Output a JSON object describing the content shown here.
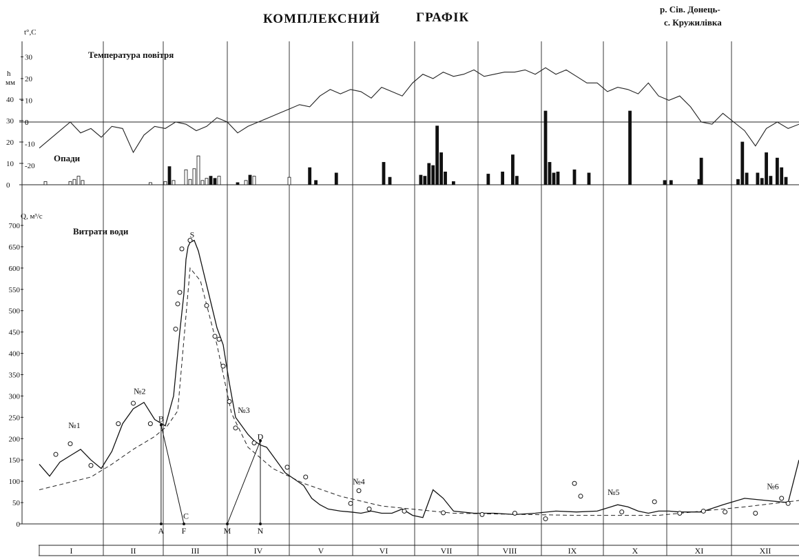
{
  "title_left": "КОМПЛЕКСНИЙ",
  "title_right": "ГРАФІК",
  "station_line1": "р. Сів. Донець-",
  "station_line2": "с. Кружилівка",
  "temp_axis_label": "t°,C",
  "precip_axis_label_h": "h",
  "precip_axis_label_mm": "мм",
  "q_axis_label": "Q, м³/с",
  "temp_label": "Температура повітря",
  "precip_label": "Опади",
  "q_label": "Витрати води",
  "chart_data": {
    "type": "line",
    "months": [
      "I",
      "II",
      "III",
      "IV",
      "V",
      "VI",
      "VII",
      "VIII",
      "IX",
      "X",
      "XI",
      "XII"
    ],
    "temperature": {
      "ticks": [
        "30",
        "20",
        "10",
        "0",
        "-10",
        "-20"
      ],
      "ylim": [
        -25,
        35
      ],
      "x_day": [
        0,
        5,
        10,
        15,
        20,
        25,
        30,
        35,
        40,
        45,
        50,
        55,
        60,
        65,
        70,
        75,
        80,
        85,
        90,
        95,
        100,
        105,
        110,
        115,
        120,
        125,
        130,
        135,
        140,
        145,
        150,
        155,
        160,
        165,
        170,
        175,
        180,
        185,
        190,
        195,
        200,
        205,
        210,
        215,
        220,
        225,
        230,
        235,
        240,
        245,
        250,
        255,
        260,
        265,
        270,
        275,
        280,
        285,
        290,
        295,
        300,
        305,
        310,
        315,
        320,
        325,
        330,
        335,
        340,
        345,
        350,
        355,
        360,
        365
      ],
      "values": [
        -12,
        -8,
        -4,
        0,
        -5,
        -3,
        -7,
        -2,
        -3,
        -14,
        -6,
        -2,
        -3,
        0,
        -1,
        -4,
        -2,
        2,
        0,
        -5,
        -2,
        0,
        2,
        4,
        6,
        8,
        7,
        12,
        15,
        13,
        15,
        14,
        11,
        16,
        14,
        12,
        18,
        22,
        20,
        23,
        21,
        22,
        24,
        21,
        22,
        23,
        23,
        24,
        22,
        25,
        22,
        24,
        21,
        18,
        18,
        14,
        16,
        15,
        13,
        18,
        12,
        10,
        12,
        7,
        0,
        -1,
        4,
        0,
        -4,
        -11,
        -3,
        0,
        -3,
        -1
      ]
    },
    "precipitation": {
      "ticks_h": [
        "40",
        "30",
        "20",
        "10",
        "0"
      ],
      "ticks_t": [
        "0",
        "-10",
        "-20"
      ],
      "note": "black = rain, white = snow",
      "bars": [
        {
          "day": 3,
          "v": 1.5,
          "snow": true
        },
        {
          "day": 15,
          "v": 1.5,
          "snow": true
        },
        {
          "day": 17,
          "v": 2.5,
          "snow": true
        },
        {
          "day": 19,
          "v": 4,
          "snow": true
        },
        {
          "day": 21,
          "v": 2,
          "snow": true
        },
        {
          "day": 53,
          "v": 1,
          "snow": true
        },
        {
          "day": 60,
          "v": 1.5,
          "snow": true
        },
        {
          "day": 62,
          "v": 8.5,
          "snow": false
        },
        {
          "day": 64,
          "v": 2,
          "snow": true
        },
        {
          "day": 70,
          "v": 7,
          "snow": true
        },
        {
          "day": 72,
          "v": 2.5,
          "snow": true
        },
        {
          "day": 74,
          "v": 7.5,
          "snow": true
        },
        {
          "day": 76,
          "v": 13.5,
          "snow": true
        },
        {
          "day": 78,
          "v": 2,
          "snow": true
        },
        {
          "day": 80,
          "v": 3,
          "snow": true
        },
        {
          "day": 82,
          "v": 4,
          "snow": false
        },
        {
          "day": 84,
          "v": 3,
          "snow": false
        },
        {
          "day": 86,
          "v": 4,
          "snow": true
        },
        {
          "day": 95,
          "v": 1,
          "snow": false
        },
        {
          "day": 99,
          "v": 2,
          "snow": true
        },
        {
          "day": 101,
          "v": 4.5,
          "snow": false
        },
        {
          "day": 103,
          "v": 4,
          "snow": true
        },
        {
          "day": 120,
          "v": 3.5,
          "snow": true
        },
        {
          "day": 130,
          "v": 8,
          "snow": false
        },
        {
          "day": 133,
          "v": 2,
          "snow": false
        },
        {
          "day": 143,
          "v": 5.5,
          "snow": false
        },
        {
          "day": 166,
          "v": 10.5,
          "snow": false
        },
        {
          "day": 169,
          "v": 3.5,
          "snow": false
        },
        {
          "day": 184,
          "v": 4.5,
          "snow": false
        },
        {
          "day": 186,
          "v": 4,
          "snow": false
        },
        {
          "day": 188,
          "v": 10,
          "snow": false
        },
        {
          "day": 190,
          "v": 9,
          "snow": false
        },
        {
          "day": 192,
          "v": 27.5,
          "snow": false
        },
        {
          "day": 194,
          "v": 15,
          "snow": false
        },
        {
          "day": 196,
          "v": 6,
          "snow": false
        },
        {
          "day": 200,
          "v": 1.5,
          "snow": false
        },
        {
          "day": 217,
          "v": 5,
          "snow": false
        },
        {
          "day": 224,
          "v": 6,
          "snow": false
        },
        {
          "day": 229,
          "v": 14,
          "snow": false
        },
        {
          "day": 231,
          "v": 4,
          "snow": false
        },
        {
          "day": 245,
          "v": 34.5,
          "snow": false
        },
        {
          "day": 247,
          "v": 10.5,
          "snow": false
        },
        {
          "day": 249,
          "v": 5.5,
          "snow": false
        },
        {
          "day": 251,
          "v": 6,
          "snow": false
        },
        {
          "day": 259,
          "v": 7,
          "snow": false
        },
        {
          "day": 266,
          "v": 5.5,
          "snow": false
        },
        {
          "day": 286,
          "v": 34.5,
          "snow": false
        },
        {
          "day": 303,
          "v": 2,
          "snow": false
        },
        {
          "day": 306,
          "v": 2,
          "snow": false
        },
        {
          "day": 319,
          "v": 2.5,
          "snow": false
        },
        {
          "day": 320,
          "v": 12.5,
          "snow": false
        },
        {
          "day": 337,
          "v": 2.5,
          "snow": false
        },
        {
          "day": 339,
          "v": 20,
          "snow": false
        },
        {
          "day": 341,
          "v": 5.5,
          "snow": false
        },
        {
          "day": 346,
          "v": 5.5,
          "snow": false
        },
        {
          "day": 348,
          "v": 3,
          "snow": false
        },
        {
          "day": 350,
          "v": 15,
          "snow": false
        },
        {
          "day": 352,
          "v": 4,
          "snow": false
        },
        {
          "day": 355,
          "v": 12.5,
          "snow": false
        },
        {
          "day": 357,
          "v": 8,
          "snow": false
        },
        {
          "day": 359,
          "v": 3.5,
          "snow": false
        }
      ]
    },
    "discharge": {
      "ticks": [
        "700",
        "650",
        "600",
        "550",
        "500",
        "450",
        "400",
        "350",
        "300",
        "250",
        "200",
        "150",
        "100",
        "50",
        "0"
      ],
      "ylim": [
        0,
        700
      ],
      "x_day": [
        0,
        5,
        10,
        15,
        20,
        25,
        30,
        35,
        40,
        45,
        50,
        55,
        60,
        64,
        67,
        69,
        70,
        71,
        72,
        74,
        76,
        79,
        82,
        85,
        88,
        91,
        94,
        97,
        100,
        103,
        106,
        109,
        112,
        115,
        118,
        121,
        124,
        127,
        131,
        135,
        139,
        145,
        150,
        155,
        160,
        165,
        170,
        175,
        180,
        185,
        190,
        195,
        200,
        210,
        220,
        230,
        240,
        250,
        260,
        270,
        280,
        285,
        290,
        295,
        300,
        305,
        310,
        320,
        330,
        340,
        350,
        360,
        365
      ],
      "values": [
        140,
        112,
        145,
        160,
        175,
        150,
        130,
        170,
        235,
        270,
        285,
        245,
        230,
        300,
        450,
        540,
        620,
        650,
        660,
        665,
        640,
        580,
        520,
        460,
        420,
        330,
        250,
        230,
        210,
        195,
        185,
        180,
        160,
        140,
        120,
        110,
        100,
        90,
        60,
        45,
        35,
        30,
        28,
        25,
        30,
        25,
        25,
        35,
        20,
        15,
        80,
        60,
        30,
        25,
        25,
        22,
        25,
        30,
        28,
        30,
        45,
        40,
        30,
        25,
        30,
        30,
        28,
        28,
        45,
        60,
        55,
        50,
        150
      ],
      "baseflow_x_day": [
        0,
        25,
        35,
        45,
        55,
        61,
        66,
        72,
        77,
        85,
        92,
        100,
        112,
        127,
        145,
        165,
        200,
        260,
        300,
        340,
        365
      ],
      "baseflow_values": [
        80,
        110,
        140,
        175,
        205,
        230,
        265,
        600,
        570,
        420,
        260,
        180,
        130,
        95,
        65,
        42,
        25,
        20,
        20,
        40,
        55
      ],
      "observed_points": [
        {
          "day": 8,
          "q": 163
        },
        {
          "day": 15,
          "q": 188
        },
        {
          "day": 25,
          "q": 137
        },
        {
          "day": 38,
          "q": 235
        },
        {
          "day": 45,
          "q": 283
        },
        {
          "day": 53,
          "q": 235
        },
        {
          "day": 65,
          "q": 457
        },
        {
          "day": 66,
          "q": 516
        },
        {
          "day": 67,
          "q": 543
        },
        {
          "day": 68,
          "q": 645
        },
        {
          "day": 72,
          "q": 665
        },
        {
          "day": 80,
          "q": 512
        },
        {
          "day": 84,
          "q": 440
        },
        {
          "day": 86,
          "q": 433
        },
        {
          "day": 88,
          "q": 370
        },
        {
          "day": 91,
          "q": 287
        },
        {
          "day": 94,
          "q": 225
        },
        {
          "day": 103,
          "q": 190
        },
        {
          "day": 119,
          "q": 133
        },
        {
          "day": 128,
          "q": 110
        },
        {
          "day": 150,
          "q": 48
        },
        {
          "day": 154,
          "q": 78
        },
        {
          "day": 159,
          "q": 35
        },
        {
          "day": 176,
          "q": 30
        },
        {
          "day": 195,
          "q": 26
        },
        {
          "day": 214,
          "q": 22
        },
        {
          "day": 230,
          "q": 25
        },
        {
          "day": 245,
          "q": 12
        },
        {
          "day": 259,
          "q": 95
        },
        {
          "day": 262,
          "q": 65
        },
        {
          "day": 282,
          "q": 28
        },
        {
          "day": 298,
          "q": 52
        },
        {
          "day": 310,
          "q": 25
        },
        {
          "day": 321,
          "q": 30
        },
        {
          "day": 331,
          "q": 28
        },
        {
          "day": 345,
          "q": 25
        },
        {
          "day": 357,
          "q": 60
        },
        {
          "day": 360,
          "q": 48
        }
      ],
      "event_labels": [
        {
          "text": "№1",
          "day": 17,
          "q": 225
        },
        {
          "text": "№2",
          "day": 48,
          "q": 305
        },
        {
          "text": "№3",
          "day": 98,
          "q": 260
        },
        {
          "text": "№4",
          "day": 154,
          "q": 93
        },
        {
          "text": "№5",
          "day": 278,
          "q": 68
        },
        {
          "text": "№6",
          "day": 353,
          "q": 82
        }
      ],
      "letter_labels": [
        {
          "text": "S",
          "day": 73,
          "q": 672
        },
        {
          "text": "B",
          "day": 58,
          "q": 240
        },
        {
          "text": "C",
          "day": 70,
          "q": 12
        },
        {
          "text": "D",
          "day": 106,
          "q": 198
        },
        {
          "text": "A",
          "day": 58,
          "q": -30
        },
        {
          "text": "F",
          "day": 69,
          "q": -30
        },
        {
          "text": "M",
          "day": 90,
          "q": -30
        },
        {
          "text": "N",
          "day": 106,
          "q": -30
        }
      ]
    }
  }
}
